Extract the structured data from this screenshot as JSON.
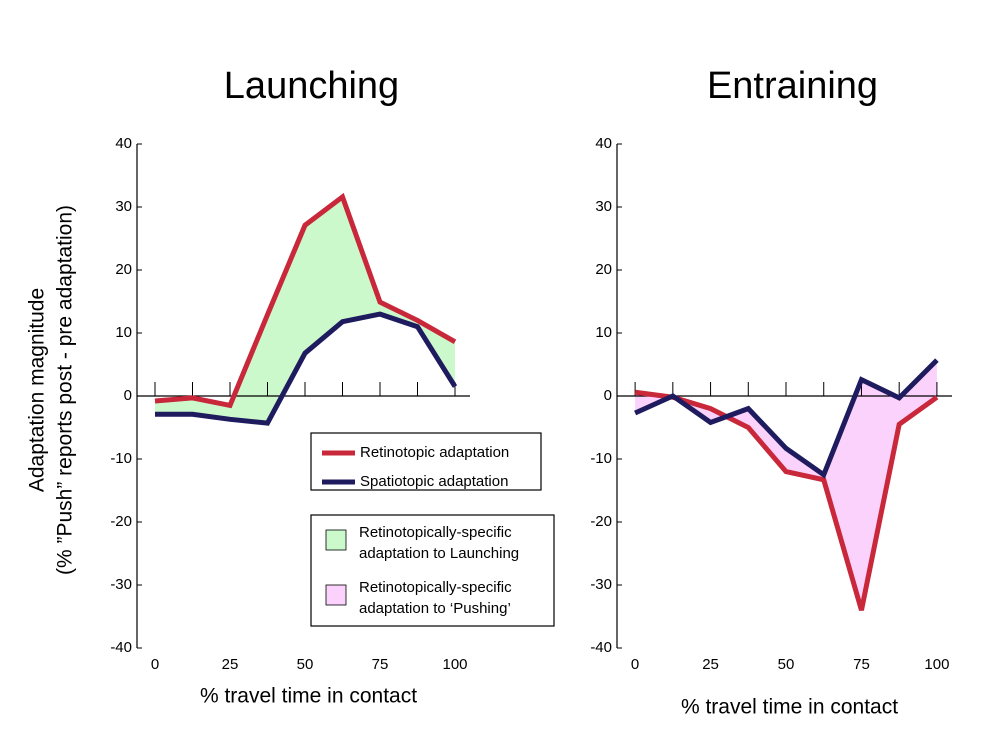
{
  "chart_data": [
    {
      "type": "line",
      "title": "Launching",
      "x": [
        0,
        12.5,
        25,
        37.5,
        50,
        62.5,
        75,
        87.5,
        100
      ],
      "series": [
        {
          "name": "Retinotopic adaptation",
          "color": "#c8283a",
          "values": [
            -0.8,
            -0.3,
            -1.5,
            12.9,
            27.1,
            31.6,
            14.9,
            12,
            8.6
          ]
        },
        {
          "name": "Spatiotopic adaptation",
          "color": "#1e1b5e",
          "values": [
            -2.9,
            -2.9,
            -3.7,
            -4.3,
            6.8,
            11.8,
            13,
            11,
            1.5
          ]
        }
      ],
      "fill_between": {
        "label": [
          "Retinotopically-specific",
          "adaptation to Launching"
        ],
        "color": "#ccf9cc"
      },
      "xlim": [
        -6,
        105
      ],
      "xticks": [
        0,
        25,
        50,
        75,
        100
      ],
      "xminor": [
        12.5,
        37.5,
        62.5,
        87.5
      ],
      "ylim": [
        -40,
        40
      ],
      "yticks": [
        -40,
        -30,
        -20,
        -10,
        0,
        10,
        20,
        30,
        40
      ],
      "xlabel": "% travel time in contact",
      "ylabel": [
        "Adaptation magnitude",
        "(% ”Push” reports post - pre adaptation)"
      ]
    },
    {
      "type": "line",
      "title": "Entraining",
      "x": [
        0,
        12.5,
        25,
        37.5,
        50,
        62.5,
        75,
        87.5,
        100
      ],
      "series": [
        {
          "name": "Retinotopic adaptation",
          "color": "#c8283a",
          "values": [
            0.6,
            -0.2,
            -2,
            -5,
            -12,
            -13.3,
            -34,
            -4.5,
            -0.2
          ]
        },
        {
          "name": "Spatiotopic adaptation",
          "color": "#1e1b5e",
          "values": [
            -2.7,
            0,
            -4.2,
            -2,
            -8.3,
            -12.5,
            2.6,
            -0.3,
            5.7
          ]
        }
      ],
      "fill_between": {
        "label": [
          "Retinotopically-specific",
          "adaptation to ‘Pushing’"
        ],
        "color": "#fbd2fb"
      },
      "xlim": [
        -6,
        105
      ],
      "xticks": [
        0,
        25,
        50,
        75,
        100
      ],
      "xminor": [
        12.5,
        37.5,
        62.5,
        87.5
      ],
      "ylim": [
        -40,
        40
      ],
      "yticks": [
        -40,
        -30,
        -20,
        -10,
        0,
        10,
        20,
        30,
        40
      ],
      "xlabel": "% travel time in contact"
    }
  ]
}
